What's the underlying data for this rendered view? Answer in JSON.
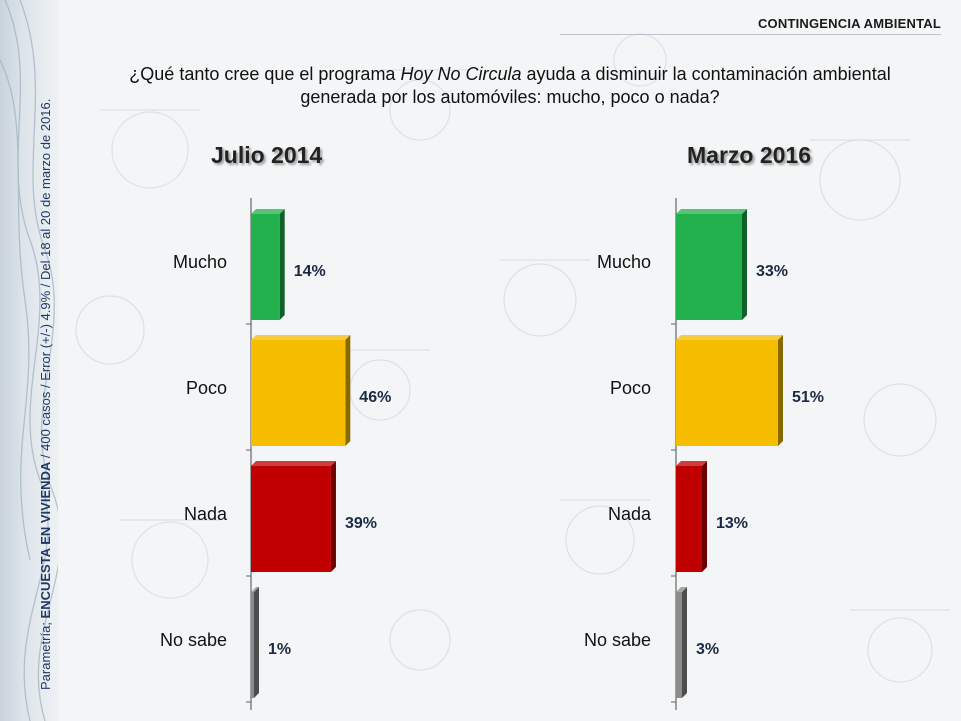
{
  "header": {
    "section_tag": "CONTINGENCIA AMBIENTAL",
    "question_pre": "¿Qué tanto cree que el programa ",
    "question_em": "Hoy No Circula",
    "question_post": " ayuda a disminuir la contaminación ambiental generada por los automóviles: mucho, poco o nada?"
  },
  "side_note": {
    "prefix": "Parametría; ",
    "bold": "ENCUESTA EN VIVIENDA",
    "suffix": " / 400 casos / Error (+/-) 4.9% / Del 18 al 20 de marzo de 2016."
  },
  "colors": {
    "Mucho": "#22b14c",
    "Poco": "#f7be00",
    "Nada": "#c00000",
    "No sabe": "#8c8c8c"
  },
  "chart_data": [
    {
      "type": "bar",
      "orientation": "horizontal",
      "title": "Julio 2014",
      "categories": [
        "Mucho",
        "Poco",
        "Nada",
        "No sabe"
      ],
      "values": [
        14,
        46,
        39,
        1
      ],
      "labels": [
        "14%",
        "46%",
        "39%",
        "1%"
      ],
      "unit": "%"
    },
    {
      "type": "bar",
      "orientation": "horizontal",
      "title": "Marzo 2016",
      "categories": [
        "Mucho",
        "Poco",
        "Nada",
        "No sabe"
      ],
      "values": [
        33,
        51,
        13,
        3
      ],
      "labels": [
        "33%",
        "51%",
        "13%",
        "3%"
      ],
      "unit": "%"
    }
  ]
}
